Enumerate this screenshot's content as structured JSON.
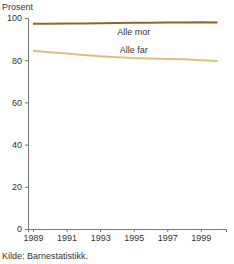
{
  "chart_data": {
    "type": "line",
    "y_label": "Prosent",
    "source": "Kilde: Barnestatistikk.",
    "x": [
      1989,
      1990,
      1991,
      1992,
      1993,
      1994,
      1995,
      1996,
      1997,
      1998,
      1999,
      2000
    ],
    "series": [
      {
        "name": "Alle mor",
        "color": "#8b6a1e",
        "values": [
          97.3,
          97.3,
          97.4,
          97.4,
          97.5,
          97.6,
          97.7,
          97.8,
          97.9,
          97.9,
          98.0,
          97.9
        ]
      },
      {
        "name": "Alle far",
        "color": "#d8c37c",
        "values": [
          84.5,
          83.8,
          83.2,
          82.5,
          81.9,
          81.4,
          81.0,
          80.8,
          80.6,
          80.4,
          80.0,
          79.6
        ]
      }
    ],
    "xlim": [
      1988.7,
      2000.5
    ],
    "xticks": [
      1989,
      1991,
      1993,
      1995,
      1997,
      1999
    ],
    "ylim": [
      0,
      100
    ],
    "yticks": [
      0,
      20,
      40,
      60,
      80,
      100
    ],
    "grid": false
  }
}
